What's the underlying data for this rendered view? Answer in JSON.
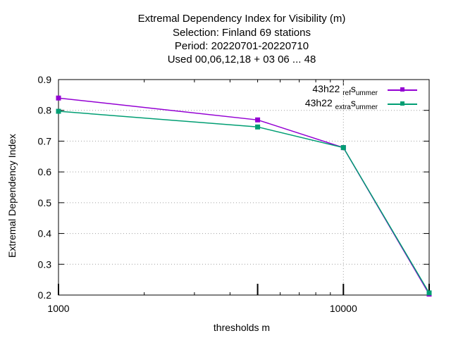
{
  "title_lines": [
    "Extremal Dependency Index  for Visibility (m)",
    "Selection: Finland     69 stations",
    "Period: 20220701-20220710",
    "Used  00,06,12,18  + 03 06 ... 48"
  ],
  "chart_data": {
    "type": "line",
    "xlabel": "thresholds m",
    "ylabel": "Extremal Dependency Index",
    "x_scale": "log",
    "xlim": [
      1000,
      20000
    ],
    "ylim": [
      0.2,
      0.9
    ],
    "y_ticks": [
      "0.9",
      "0.8",
      "0.7",
      "0.6",
      "0.5",
      "0.4",
      "0.3",
      "0.2"
    ],
    "x_ticks": [
      "1000",
      "10000"
    ],
    "grid": true,
    "legend_position": "top-right",
    "series": [
      {
        "name_parts": [
          "43h22 ",
          "ref",
          "s",
          "ummer"
        ],
        "color": "#9400d3",
        "x": [
          1000,
          5000,
          10000,
          20000
        ],
        "y": [
          0.84,
          0.769,
          0.679,
          0.203
        ]
      },
      {
        "name_parts": [
          "43h22 ",
          "extra",
          "s",
          "ummer"
        ],
        "color": "#009e73",
        "x": [
          1000,
          5000,
          10000,
          20000
        ],
        "y": [
          0.797,
          0.746,
          0.679,
          0.207
        ]
      }
    ]
  }
}
